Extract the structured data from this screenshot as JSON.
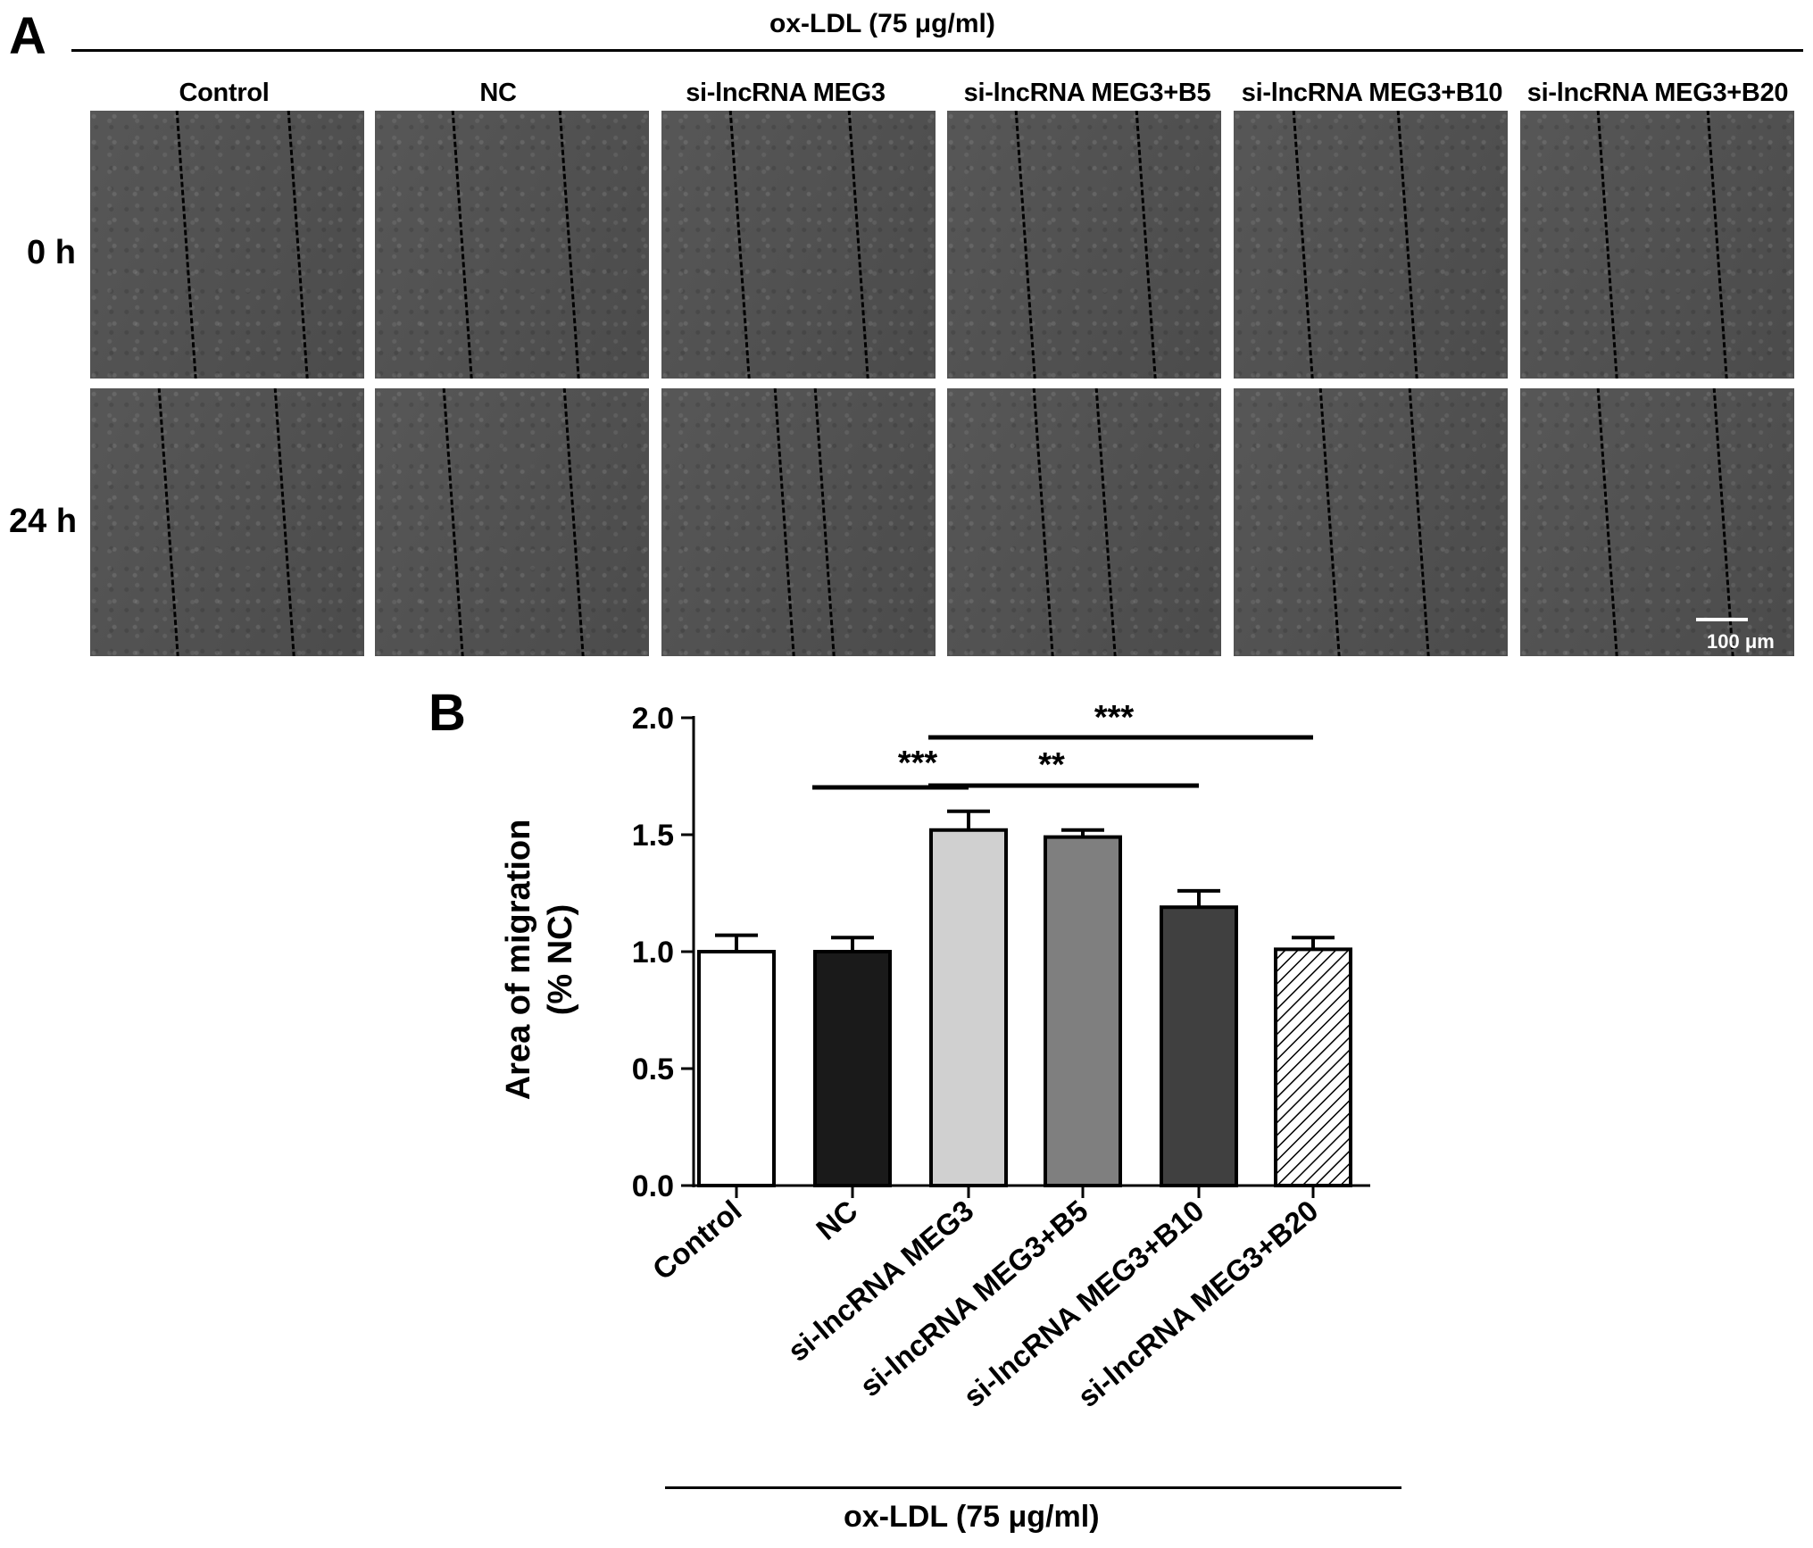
{
  "panel_a": {
    "letter": "A",
    "treatment": "ox-LDL  (75 μg/ml)",
    "columns": [
      "Control",
      "NC",
      "si-lncRNA MEG3",
      "si-lncRNA MEG3+B5",
      "si-lncRNA MEG3+B10",
      "si-lncRNA MEG3+B20"
    ],
    "rows": [
      "0 h",
      "24 h"
    ],
    "scale_bar": "100 μm"
  },
  "panel_b": {
    "letter": "B",
    "treatment": "ox-LDL  (75 μg/ml)"
  },
  "chart_data": {
    "type": "bar",
    "categories": [
      "Control",
      "NC",
      "si-lncRNA MEG3",
      "si-lncRNA MEG3+B5",
      "si-lncRNA MEG3+B10",
      "si-lncRNA MEG3+B20"
    ],
    "values": [
      1.0,
      1.0,
      1.52,
      1.49,
      1.19,
      1.01
    ],
    "errors": [
      0.07,
      0.06,
      0.08,
      0.03,
      0.07,
      0.05
    ],
    "ylabel_line1": "Area of migration",
    "ylabel_line2": "(% NC)",
    "xlabel": "",
    "ylim": [
      0.0,
      2.0
    ],
    "yticks": [
      "0.0",
      "0.5",
      "1.0",
      "1.5",
      "2.0"
    ],
    "bar_fills": [
      "#ffffff",
      "#1a1a1a",
      "#d0d0d0",
      "#7f7f7f",
      "#404040",
      "hatch"
    ],
    "significance": [
      {
        "from": 1,
        "to": 2,
        "label": "***"
      },
      {
        "from": 2,
        "to": 4,
        "label": "**"
      },
      {
        "from": 2,
        "to": 5,
        "label": "***"
      }
    ]
  }
}
